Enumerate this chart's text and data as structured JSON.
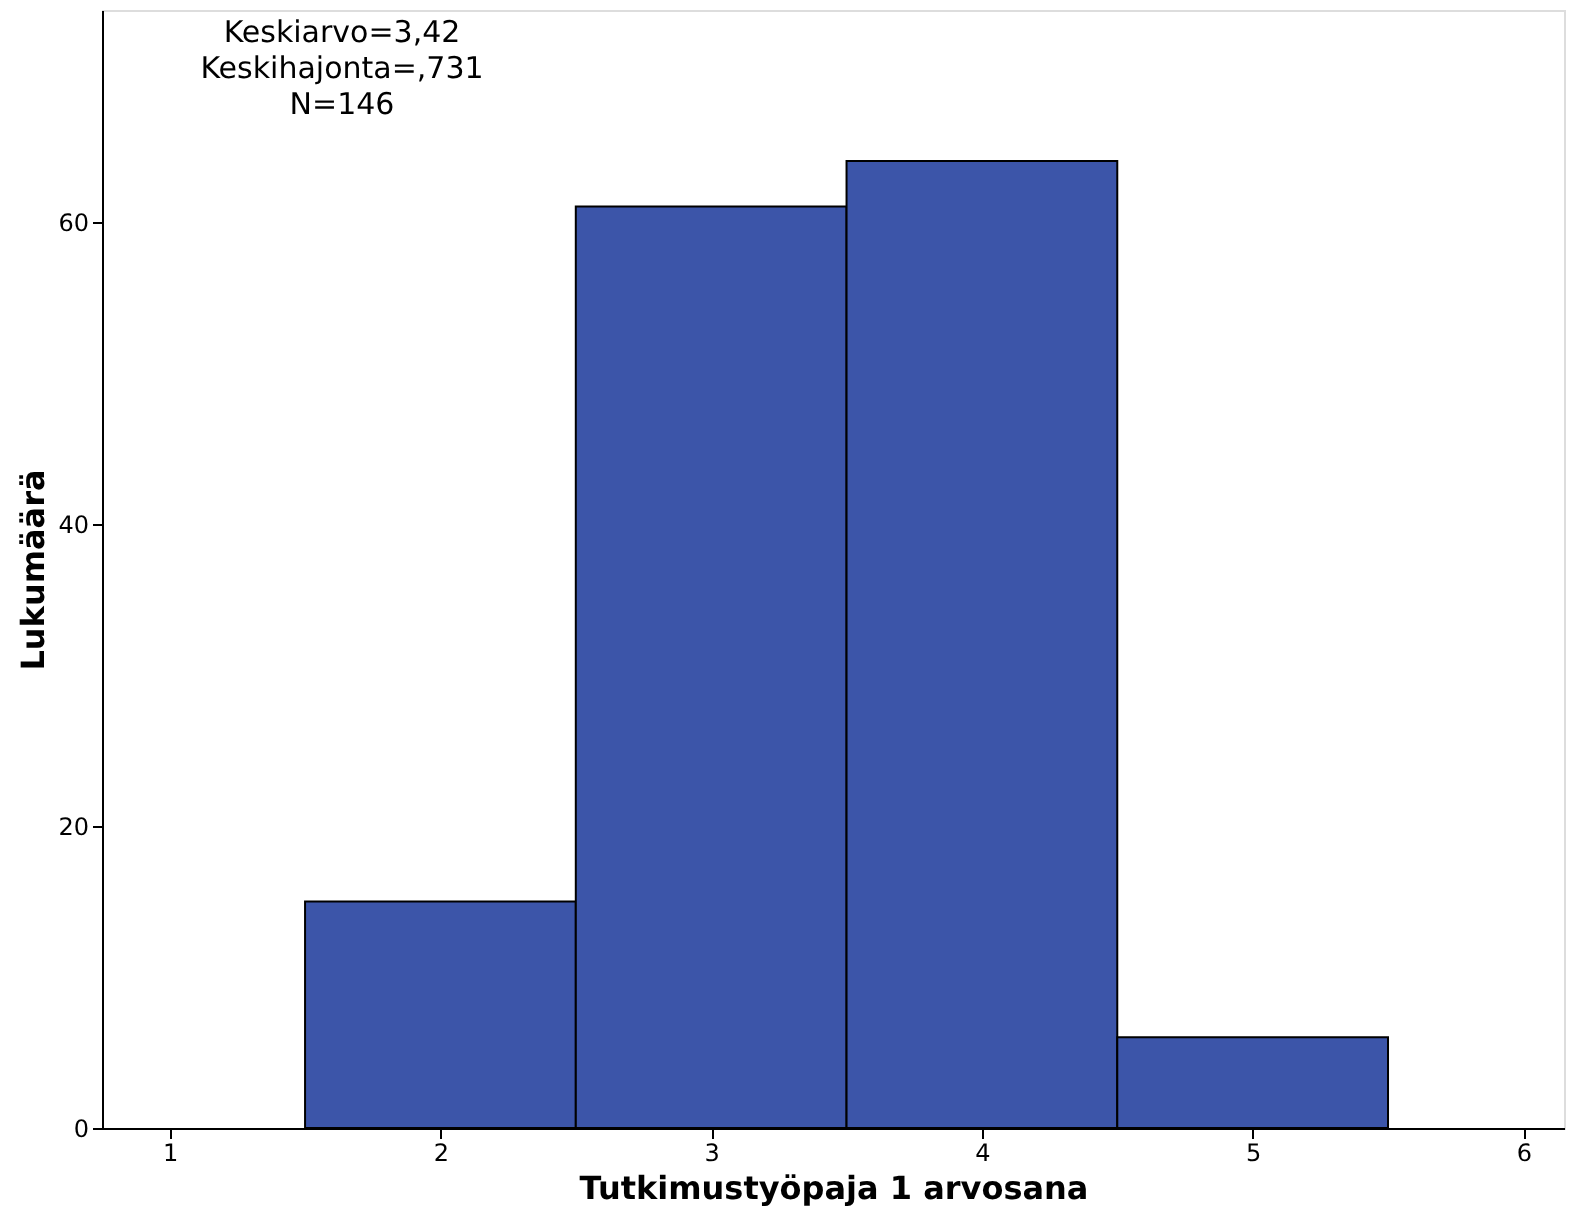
{
  "chart_data": {
    "type": "histogram",
    "xlabel": "Tutkimustyöpaja 1 arvosana",
    "ylabel": "Lukumäärä",
    "bins": [
      1.5,
      2.5,
      3.5,
      4.5,
      5.5
    ],
    "values": [
      15,
      61,
      64,
      6
    ],
    "color": "#3c55a9",
    "xlim": [
      0.75,
      6.15
    ],
    "xticks": [
      1,
      2,
      3,
      4,
      5,
      6
    ],
    "ylim": [
      0,
      74
    ],
    "yticks": [
      0,
      20,
      40,
      60
    ],
    "grid": false,
    "annotations": [
      "Keskiarvo=3,42",
      "Keskihajonta=,731",
      "N=146"
    ]
  }
}
